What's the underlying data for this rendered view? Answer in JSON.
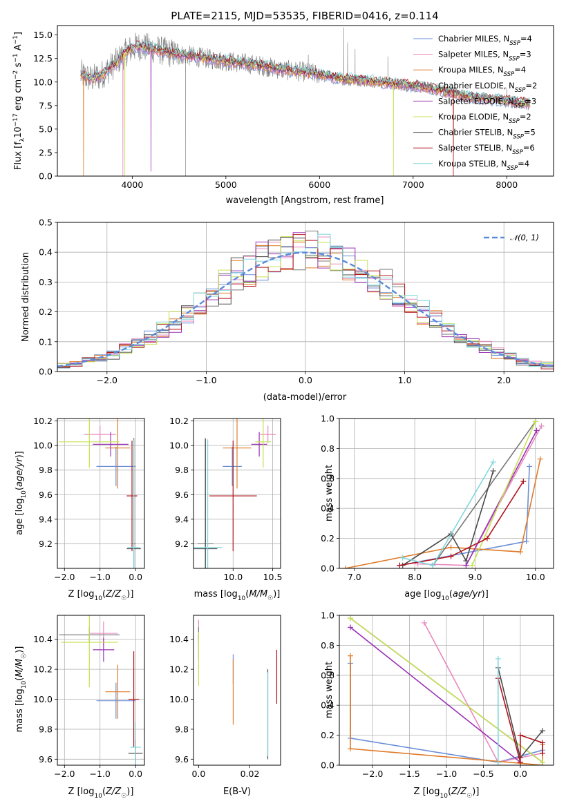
{
  "figure_title": "PLATE=2115, MJD=53535, FIBERID=0416, z=0.114",
  "colors": {
    "chabrier_miles": "#6a8fd8",
    "salpeter_miles": "#e889be",
    "kroupa_miles": "#e07b2a",
    "chabrier_elodie": "#777777",
    "salpeter_elodie": "#9a32b4",
    "kroupa_elodie": "#c6e052",
    "chabrier_stelib": "#4a4a4a",
    "salpeter_stelib": "#b0141c",
    "kroupa_stelib": "#7fd6dc",
    "gauss": "#5b8bd9",
    "grid": "#b0b0b0"
  },
  "chart_data": [
    {
      "id": "spectrum",
      "type": "line",
      "title": "PLATE=2115, MJD=53535, FIBERID=0416, z=0.114",
      "xlabel": "wavelength [Angstrom, rest frame]",
      "ylabel": "Flux [f_λ 10^-17 erg cm^-2 s^-1 A^-1]",
      "ylabel_parts": {
        "a": "Flux [f",
        "b": "λ",
        "c": "10",
        "d": "−17",
        "e": " erg cm",
        "f": "−2",
        "g": " s",
        "h": "−1",
        "i": " A",
        "j": "−1",
        "k": "]"
      },
      "xlim": [
        3200,
        8500
      ],
      "ylim": [
        0,
        16
      ],
      "xticks": [
        4000,
        5000,
        6000,
        7000,
        8000
      ],
      "yticks": [
        0.0,
        2.5,
        5.0,
        7.5,
        10.0,
        12.5,
        15.0
      ],
      "grid": false,
      "legend_position": "top-right",
      "series": [
        {
          "name": "Chabrier MILES, N_SSP=4",
          "label_base": "Chabrier MILES, N",
          "label_sub": "SSP",
          "label_end": "=4"
        },
        {
          "name": "Salpeter MILES, N_SSP=3",
          "label_base": "Salpeter MILES, N",
          "label_sub": "SSP",
          "label_end": "=3"
        },
        {
          "name": "Kroupa MILES, N_SSP=4",
          "label_base": "Kroupa MILES, N",
          "label_sub": "SSP",
          "label_end": "=4"
        },
        {
          "name": "Chabrier ELODIE, N_SSP=2",
          "label_base": "Chabrier ELODIE, N",
          "label_sub": "SSP",
          "label_end": "=2"
        },
        {
          "name": "Salpeter ELODIE, N_SSP=3",
          "label_base": "Salpeter ELODIE, N",
          "label_sub": "SSP",
          "label_end": "=3"
        },
        {
          "name": "Kroupa ELODIE, N_SSP=2",
          "label_base": "Kroupa ELODIE, N",
          "label_sub": "SSP",
          "label_end": "=2"
        },
        {
          "name": "Chabrier STELIB, N_SSP=5",
          "label_base": "Chabrier STELIB, N",
          "label_sub": "SSP",
          "label_end": "=5"
        },
        {
          "name": "Salpeter STELIB, N_SSP=6",
          "label_base": "Salpeter STELIB, N",
          "label_sub": "SSP",
          "label_end": "=6"
        },
        {
          "name": "Kroupa STELIB, N_SSP=4",
          "label_base": "Kroupa STELIB, N",
          "label_sub": "SSP",
          "label_end": "=4"
        }
      ],
      "continuum": [
        [
          3460,
          10.8
        ],
        [
          3550,
          10.3
        ],
        [
          3650,
          10.6
        ],
        [
          3800,
          11.8
        ],
        [
          3950,
          13.3
        ],
        [
          4050,
          13.8
        ],
        [
          4200,
          13.6
        ],
        [
          4400,
          13.1
        ],
        [
          4600,
          12.8
        ],
        [
          4800,
          12.5
        ],
        [
          5000,
          12.2
        ],
        [
          5200,
          12.0
        ],
        [
          5400,
          11.7
        ],
        [
          5600,
          11.3
        ],
        [
          5800,
          11.1
        ],
        [
          6000,
          10.8
        ],
        [
          6200,
          10.4
        ],
        [
          6400,
          10.2
        ],
        [
          6600,
          10.1
        ],
        [
          6800,
          9.8
        ],
        [
          7000,
          9.6
        ],
        [
          7200,
          9.3
        ],
        [
          7400,
          8.9
        ],
        [
          7600,
          8.4
        ],
        [
          7800,
          8.2
        ],
        [
          8000,
          8.0
        ],
        [
          8240,
          7.7
        ]
      ],
      "obs_xrange": [
        3450,
        8250
      ],
      "obs_spikes": [
        [
          4570,
          0
        ],
        [
          6260,
          15.8
        ],
        [
          6300,
          14.2
        ],
        [
          6380,
          13.5
        ],
        [
          5880,
          12.9
        ],
        [
          6730,
          12.7
        ],
        [
          8000,
          9.4
        ]
      ],
      "model_dips": [
        {
          "model": "kroupa_miles",
          "x": 3480,
          "y": 0
        },
        {
          "model": "salpeter_miles",
          "x": 3900,
          "y": 0
        },
        {
          "model": "kroupa_elodie",
          "x": 3920,
          "y": 0
        },
        {
          "model": "salpeter_elodie",
          "x": 4200,
          "y": 0.5
        },
        {
          "model": "kroupa_elodie",
          "x": 6790,
          "y": 0
        },
        {
          "model": "salpeter_stelib",
          "x": 7430,
          "y": 0
        }
      ]
    },
    {
      "id": "residuals",
      "type": "histogram",
      "xlabel": "(data-model)/error",
      "ylabel": "Normed distribution",
      "xlim": [
        -2.5,
        2.5
      ],
      "ylim": [
        0,
        0.5
      ],
      "xticks": [
        -2,
        -1,
        0,
        1,
        2
      ],
      "yticks": [
        0.0,
        0.1,
        0.2,
        0.3,
        0.4,
        0.5
      ],
      "grid": true,
      "legend_position": "top-right",
      "bins": 40,
      "reference_curve": {
        "name": "N(0,1)",
        "label_text": "𝒩(0, 1)",
        "mean": 0,
        "sigma": 1
      }
    },
    {
      "id": "age_vs_Z",
      "type": "errorbar",
      "xlabel": "Z [log10(Z/Z☉)]",
      "ylabel": "age [log10(age/yr)]",
      "xlim": [
        -2.2,
        0.25
      ],
      "ylim": [
        9.0,
        10.22
      ],
      "xticks": [
        -2,
        -1,
        0
      ],
      "yticks": [
        9.2,
        9.4,
        9.6,
        9.8,
        10.0,
        10.2
      ],
      "grid": true,
      "points": [
        {
          "model": "chabrier_miles",
          "x": -0.55,
          "y": 9.83,
          "xerr": 0.55,
          "yerr": 0.16
        },
        {
          "model": "salpeter_miles",
          "x": -1.0,
          "y": 10.09,
          "xerr": 0.45,
          "yerr": 0.07
        },
        {
          "model": "kroupa_miles",
          "x": -0.5,
          "y": 9.98,
          "xerr": 0.35,
          "yerr": 0.33
        },
        {
          "model": "chabrier_elodie",
          "x": -0.05,
          "y": 9.2,
          "xerr": 0.05,
          "yerr": 0.85
        },
        {
          "model": "salpeter_elodie",
          "x": -0.7,
          "y": 10.01,
          "xerr": 0.5,
          "yerr": 0.1
        },
        {
          "model": "kroupa_elodie",
          "x": -1.3,
          "y": 10.03,
          "xerr": 0.85,
          "yerr": 0.21
        },
        {
          "model": "chabrier_stelib",
          "x": -0.05,
          "y": 9.16,
          "xerr": 0.2,
          "yerr": 0.9
        },
        {
          "model": "salpeter_stelib",
          "x": -0.1,
          "y": 9.59,
          "xerr": 0.15,
          "yerr": 0.45
        },
        {
          "model": "kroupa_stelib",
          "x": -0.05,
          "y": 9.17,
          "xerr": 0.18,
          "yerr": 0.88
        }
      ]
    },
    {
      "id": "age_vs_mass",
      "type": "errorbar",
      "xlabel": "mass [log10(M/M☉)]",
      "ylabel": "",
      "xlim": [
        9.5,
        10.6
      ],
      "ylim": [
        9.0,
        10.22
      ],
      "xticks": [
        10.0,
        10.5
      ],
      "yticks": [
        9.2,
        9.4,
        9.6,
        9.8,
        10.0,
        10.2
      ],
      "grid": true,
      "points": [
        {
          "model": "chabrier_miles",
          "x": 9.99,
          "y": 9.83,
          "xerr": 0.12,
          "yerr": 0.16
        },
        {
          "model": "salpeter_miles",
          "x": 10.44,
          "y": 10.09,
          "xerr": 0.1,
          "yerr": 0.07
        },
        {
          "model": "kroupa_miles",
          "x": 10.05,
          "y": 9.98,
          "xerr": 0.18,
          "yerr": 0.33
        },
        {
          "model": "chabrier_elodie",
          "x": 9.65,
          "y": 9.2,
          "xerr": 0.1,
          "yerr": 0.85
        },
        {
          "model": "salpeter_elodie",
          "x": 10.33,
          "y": 10.01,
          "xerr": 0.1,
          "yerr": 0.1
        },
        {
          "model": "kroupa_elodie",
          "x": 10.38,
          "y": 10.03,
          "xerr": 0.1,
          "yerr": 0.21
        },
        {
          "model": "chabrier_stelib",
          "x": 9.65,
          "y": 9.16,
          "xerr": 0.15,
          "yerr": 0.9
        },
        {
          "model": "salpeter_stelib",
          "x": 10.0,
          "y": 9.59,
          "xerr": 0.3,
          "yerr": 0.45
        },
        {
          "model": "kroupa_stelib",
          "x": 9.68,
          "y": 9.17,
          "xerr": 0.18,
          "yerr": 0.88
        }
      ]
    },
    {
      "id": "massweight_vs_age",
      "type": "line",
      "xlabel": "age [log10(age/yr)]",
      "ylabel": "mass weight",
      "xlim": [
        6.75,
        10.3
      ],
      "ylim": [
        0,
        1.0
      ],
      "xticks": [
        7,
        8,
        9,
        10
      ],
      "yticks": [
        0.0,
        0.2,
        0.4,
        0.6,
        0.8,
        1.0
      ],
      "grid": true,
      "series": [
        {
          "model": "chabrier_miles",
          "x": [
            7.75,
            9.85,
            9.9
          ],
          "y": [
            0.02,
            0.18,
            0.68
          ]
        },
        {
          "model": "salpeter_miles",
          "x": [
            8.05,
            8.85,
            10.1
          ],
          "y": [
            0.03,
            0.02,
            0.95
          ]
        },
        {
          "model": "kroupa_miles",
          "x": [
            6.85,
            8.6,
            9.75,
            10.08
          ],
          "y": [
            0.0,
            0.14,
            0.11,
            0.73
          ]
        },
        {
          "model": "chabrier_elodie",
          "x": [
            8.3,
            10.0
          ],
          "y": [
            0.02,
            0.98
          ]
        },
        {
          "model": "salpeter_elodie",
          "x": [
            8.85,
            10.02
          ],
          "y": [
            0.02,
            0.92
          ]
        },
        {
          "model": "kroupa_elodie",
          "x": [
            8.95,
            10.0
          ],
          "y": [
            0.02,
            0.98
          ]
        },
        {
          "model": "chabrier_stelib",
          "x": [
            7.8,
            8.6,
            8.85,
            9.3
          ],
          "y": [
            0.02,
            0.23,
            0.05,
            0.65
          ]
        },
        {
          "model": "salpeter_stelib",
          "x": [
            7.75,
            8.6,
            9.2,
            9.8
          ],
          "y": [
            0.02,
            0.08,
            0.2,
            0.58
          ]
        },
        {
          "model": "kroupa_stelib",
          "x": [
            7.8,
            8.3,
            9.3
          ],
          "y": [
            0.07,
            0.02,
            0.71
          ]
        }
      ]
    },
    {
      "id": "mass_vs_Z",
      "type": "errorbar",
      "xlabel": "Z [log10(Z/Z☉)]",
      "ylabel": "mass [log10(M/M☉)]",
      "xlim": [
        -2.2,
        0.25
      ],
      "ylim": [
        9.56,
        10.56
      ],
      "xticks": [
        -2,
        -1,
        0
      ],
      "yticks": [
        9.6,
        9.8,
        10.0,
        10.2,
        10.4
      ],
      "grid": true,
      "points": [
        {
          "model": "chabrier_miles",
          "x": -0.55,
          "y": 9.99,
          "xerr": 0.55,
          "yerr": 0.12
        },
        {
          "model": "salpeter_miles",
          "x": -0.9,
          "y": 10.44,
          "xerr": 0.4,
          "yerr": 0.08
        },
        {
          "model": "kroupa_miles",
          "x": -0.5,
          "y": 10.05,
          "xerr": 0.35,
          "yerr": 0.18
        },
        {
          "model": "chabrier_elodie",
          "x": -1.3,
          "y": 10.43,
          "xerr": 0.85,
          "yerr": 0.05
        },
        {
          "model": "salpeter_elodie",
          "x": -0.9,
          "y": 10.33,
          "xerr": 0.3,
          "yerr": 0.08
        },
        {
          "model": "kroupa_elodie",
          "x": -1.3,
          "y": 10.38,
          "xerr": 0.8,
          "yerr": 0.3
        },
        {
          "model": "chabrier_stelib",
          "x": 0.0,
          "y": 9.64,
          "xerr": 0.2,
          "yerr": 0.09
        },
        {
          "model": "salpeter_stelib",
          "x": -0.05,
          "y": 10.0,
          "xerr": 0.15,
          "yerr": 0.32
        },
        {
          "model": "kroupa_stelib",
          "x": 0.0,
          "y": 9.68,
          "xerr": 0.15,
          "yerr": 0.17
        }
      ]
    },
    {
      "id": "mass_vs_ebv",
      "type": "errorbar",
      "xlabel": "E(B-V)",
      "ylabel": "",
      "xlim": [
        -0.002,
        0.032
      ],
      "ylim": [
        9.56,
        10.56
      ],
      "xticks": [
        0.0,
        0.02
      ],
      "yticks": [
        9.6,
        9.8,
        10.0,
        10.2,
        10.4
      ],
      "grid": false,
      "points": [
        {
          "model": "chabrier_miles",
          "x": 0.0135,
          "y": 10.2,
          "xerr": 0,
          "yerr": 0.1
        },
        {
          "model": "salpeter_miles",
          "x": 0.0,
          "y": 10.45,
          "xerr": 0,
          "yerr": 0.08
        },
        {
          "model": "kroupa_miles",
          "x": 0.0135,
          "y": 10.05,
          "xerr": 0,
          "yerr": 0.22
        },
        {
          "model": "chabrier_elodie",
          "x": 0.0,
          "y": 10.43,
          "xerr": 0,
          "yerr": 0.05
        },
        {
          "model": "salpeter_elodie",
          "x": 0.0,
          "y": 10.35,
          "xerr": 0,
          "yerr": 0.08
        },
        {
          "model": "kroupa_elodie",
          "x": 0.0,
          "y": 10.27,
          "xerr": 0,
          "yerr": 0.18
        },
        {
          "model": "chabrier_stelib",
          "x": 0.027,
          "y": 9.9,
          "xerr": 0,
          "yerr": 0.3
        },
        {
          "model": "salpeter_stelib",
          "x": 0.0305,
          "y": 10.15,
          "xerr": 0,
          "yerr": 0.18
        },
        {
          "model": "kroupa_stelib",
          "x": 0.027,
          "y": 9.9,
          "xerr": 0,
          "yerr": 0.28
        }
      ]
    },
    {
      "id": "massweight_vs_Z",
      "type": "line",
      "xlabel": "Z [log10(Z/Z☉)]",
      "ylabel": "mass weight",
      "xlim": [
        -2.45,
        0.45
      ],
      "ylim": [
        0,
        1.0
      ],
      "xticks": [
        -2.0,
        -1.5,
        -1.0,
        -0.5,
        0.0
      ],
      "yticks": [
        0.0,
        0.2,
        0.4,
        0.6,
        0.8,
        1.0
      ],
      "grid": true,
      "series": [
        {
          "model": "chabrier_miles",
          "x": [
            -2.3,
            -2.3,
            -0.3,
            0.3
          ],
          "y": [
            0.68,
            0.18,
            0.02,
            0.1
          ]
        },
        {
          "model": "salpeter_miles",
          "x": [
            -1.3,
            -0.3,
            0.3
          ],
          "y": [
            0.95,
            0.02,
            0.08
          ]
        },
        {
          "model": "kroupa_miles",
          "x": [
            -2.3,
            -2.3,
            0.3,
            0.3
          ],
          "y": [
            0.73,
            0.11,
            0.0,
            0.14
          ]
        },
        {
          "model": "chabrier_elodie",
          "x": [
            -2.3,
            0.3
          ],
          "y": [
            0.98,
            0.02
          ]
        },
        {
          "model": "salpeter_elodie",
          "x": [
            -2.3,
            0.0
          ],
          "y": [
            0.92,
            0.02
          ]
        },
        {
          "model": "kroupa_elodie",
          "x": [
            -2.3,
            0.3
          ],
          "y": [
            0.98,
            0.02
          ]
        },
        {
          "model": "chabrier_stelib",
          "x": [
            -0.3,
            0.0,
            0.3
          ],
          "y": [
            0.65,
            0.05,
            0.23
          ]
        },
        {
          "model": "salpeter_stelib",
          "x": [
            -0.3,
            0.0,
            0.0,
            0.3,
            0.3
          ],
          "y": [
            0.58,
            0.02,
            0.2,
            0.15,
            0.08
          ]
        },
        {
          "model": "kroupa_stelib",
          "x": [
            -0.3,
            -0.3
          ],
          "y": [
            0.71,
            0.02
          ]
        }
      ]
    }
  ]
}
